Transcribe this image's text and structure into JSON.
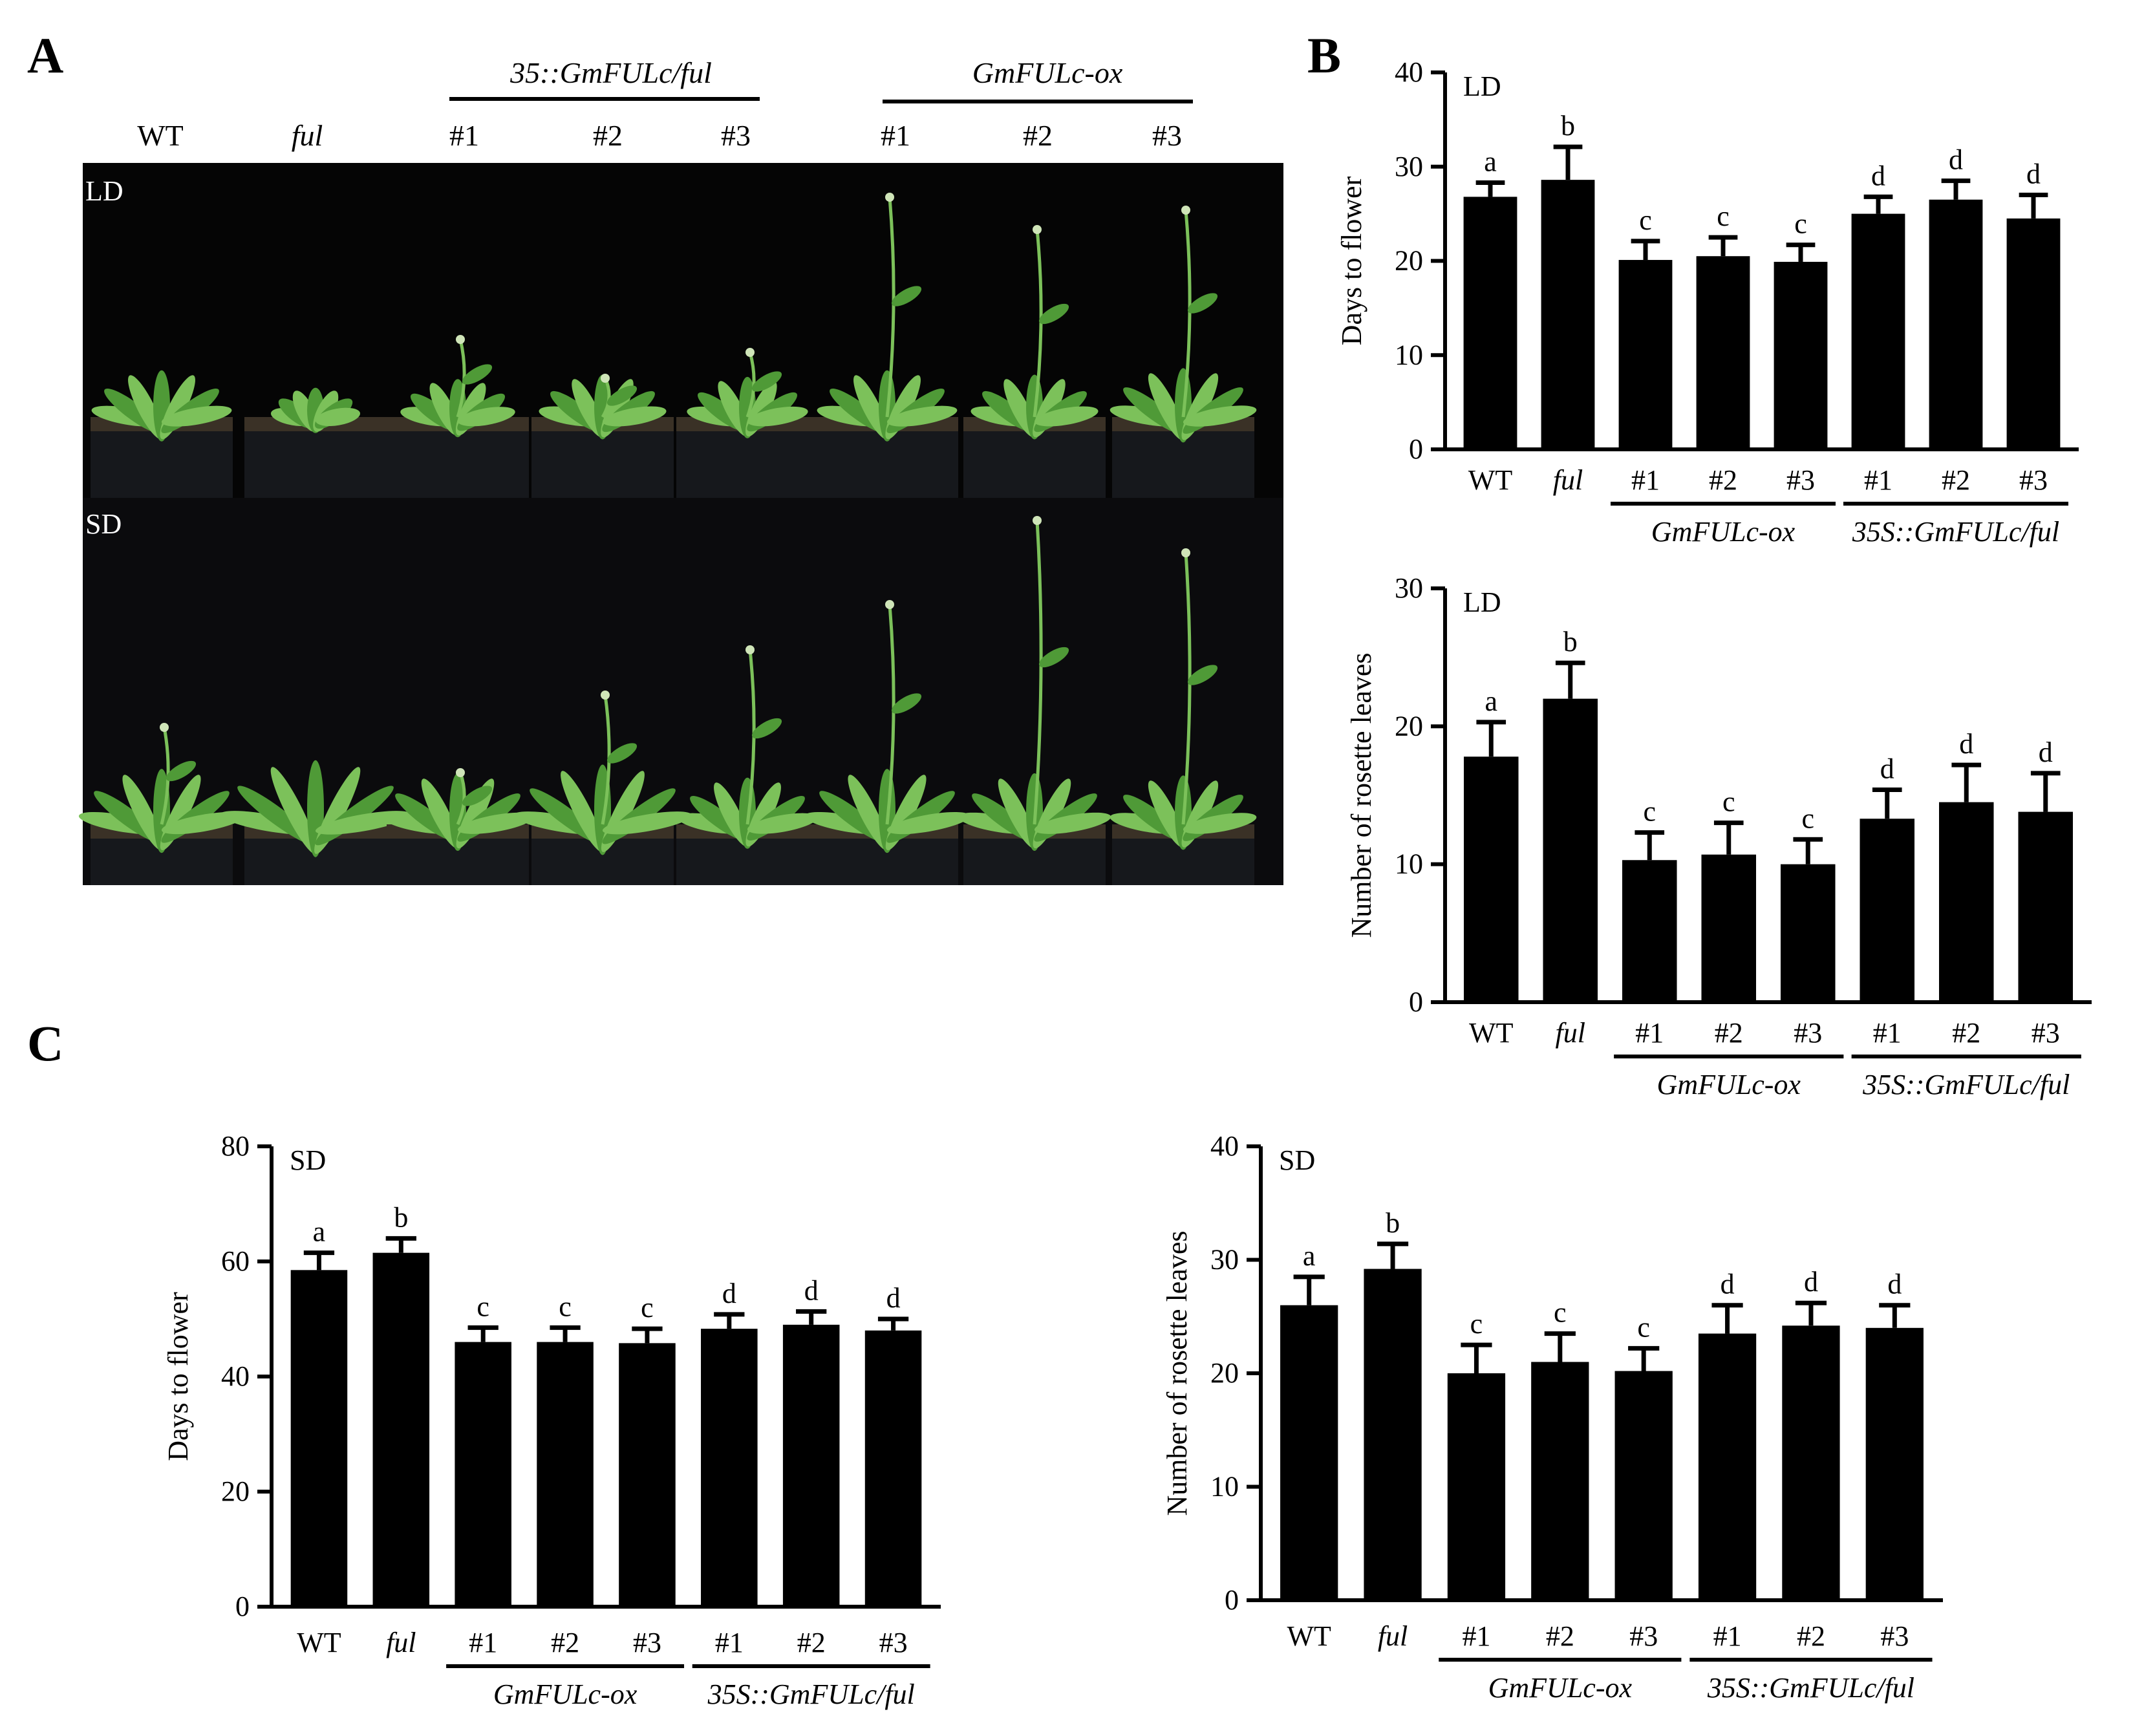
{
  "panel_labels": {
    "a": "A",
    "b": "B",
    "c": "C"
  },
  "photo": {
    "group_labels": {
      "complemented": "35::GmFULc/ful",
      "overexpression": "GmFULc-ox"
    },
    "pot_labels": [
      "WT",
      "ful",
      "#1",
      "#2",
      "#3",
      "#1",
      "#2",
      "#3"
    ],
    "condition_labels": {
      "top": "LD",
      "bottom": "SD"
    },
    "colors": {
      "background": "#050505",
      "leaf": "#4f9a37",
      "leaf_light": "#7cc15a",
      "soil": "#3a3126",
      "pot": "#16181c"
    }
  },
  "chart_data": [
    {
      "id": "b-days-ld",
      "type": "bar",
      "condition": "LD",
      "ylabel": "Days to flower",
      "ylim": [
        0,
        40
      ],
      "yticks": [
        0,
        10,
        20,
        30,
        40
      ],
      "categories": [
        "WT",
        "ful",
        "#1",
        "#2",
        "#3",
        "#1",
        "#2",
        "#3"
      ],
      "values": [
        26.8,
        28.6,
        20.1,
        20.5,
        19.9,
        25.0,
        26.5,
        24.5
      ],
      "errors": [
        1.5,
        3.5,
        2.0,
        2.0,
        1.8,
        1.8,
        2.0,
        2.5
      ],
      "letters": [
        "a",
        "b",
        "c",
        "c",
        "c",
        "d",
        "d",
        "d"
      ],
      "groups": [
        {
          "label": "GmFULc-ox",
          "start": 2,
          "end": 4
        },
        {
          "label": "35S::GmFULc/ful",
          "start": 5,
          "end": 7
        }
      ]
    },
    {
      "id": "b-leaves-ld",
      "type": "bar",
      "condition": "LD",
      "ylabel": "Number of rosette leaves",
      "ylim": [
        0,
        30
      ],
      "yticks": [
        0,
        10,
        20,
        30
      ],
      "categories": [
        "WT",
        "ful",
        "#1",
        "#2",
        "#3",
        "#1",
        "#2",
        "#3"
      ],
      "values": [
        17.8,
        22.0,
        10.3,
        10.7,
        10.0,
        13.3,
        14.5,
        13.8
      ],
      "errors": [
        2.5,
        2.6,
        2.0,
        2.3,
        1.8,
        2.1,
        2.7,
        2.8
      ],
      "letters": [
        "a",
        "b",
        "c",
        "c",
        "c",
        "d",
        "d",
        "d"
      ],
      "groups": [
        {
          "label": "GmFULc-ox",
          "start": 2,
          "end": 4
        },
        {
          "label": "35S::GmFULc/ful",
          "start": 5,
          "end": 7
        }
      ]
    },
    {
      "id": "c-days-sd",
      "type": "bar",
      "condition": "SD",
      "ylabel": "Days to flower",
      "ylim": [
        0,
        80
      ],
      "yticks": [
        0,
        20,
        40,
        60,
        80
      ],
      "categories": [
        "WT",
        "ful",
        "#1",
        "#2",
        "#3",
        "#1",
        "#2",
        "#3"
      ],
      "values": [
        58.5,
        61.5,
        46.0,
        46.0,
        45.8,
        48.3,
        49.0,
        48.0
      ],
      "errors": [
        3.0,
        2.5,
        2.5,
        2.5,
        2.5,
        2.5,
        2.3,
        2.0
      ],
      "letters": [
        "a",
        "b",
        "c",
        "c",
        "c",
        "d",
        "d",
        "d"
      ],
      "groups": [
        {
          "label": "GmFULc-ox",
          "start": 2,
          "end": 4
        },
        {
          "label": "35S::GmFULc/ful",
          "start": 5,
          "end": 7
        }
      ]
    },
    {
      "id": "c-leaves-sd",
      "type": "bar",
      "condition": "SD",
      "ylabel": "Number of rosette leaves",
      "ylim": [
        0,
        40
      ],
      "yticks": [
        0,
        10,
        20,
        30,
        40
      ],
      "categories": [
        "WT",
        "ful",
        "#1",
        "#2",
        "#3",
        "#1",
        "#2",
        "#3"
      ],
      "values": [
        26.0,
        29.2,
        20.0,
        21.0,
        20.2,
        23.5,
        24.2,
        24.0
      ],
      "errors": [
        2.5,
        2.2,
        2.5,
        2.5,
        2.0,
        2.5,
        2.0,
        2.0
      ],
      "letters": [
        "a",
        "b",
        "c",
        "c",
        "c",
        "d",
        "d",
        "d"
      ],
      "groups": [
        {
          "label": "GmFULc-ox",
          "start": 2,
          "end": 4
        },
        {
          "label": "35S::GmFULc/ful",
          "start": 5,
          "end": 7
        }
      ]
    }
  ]
}
